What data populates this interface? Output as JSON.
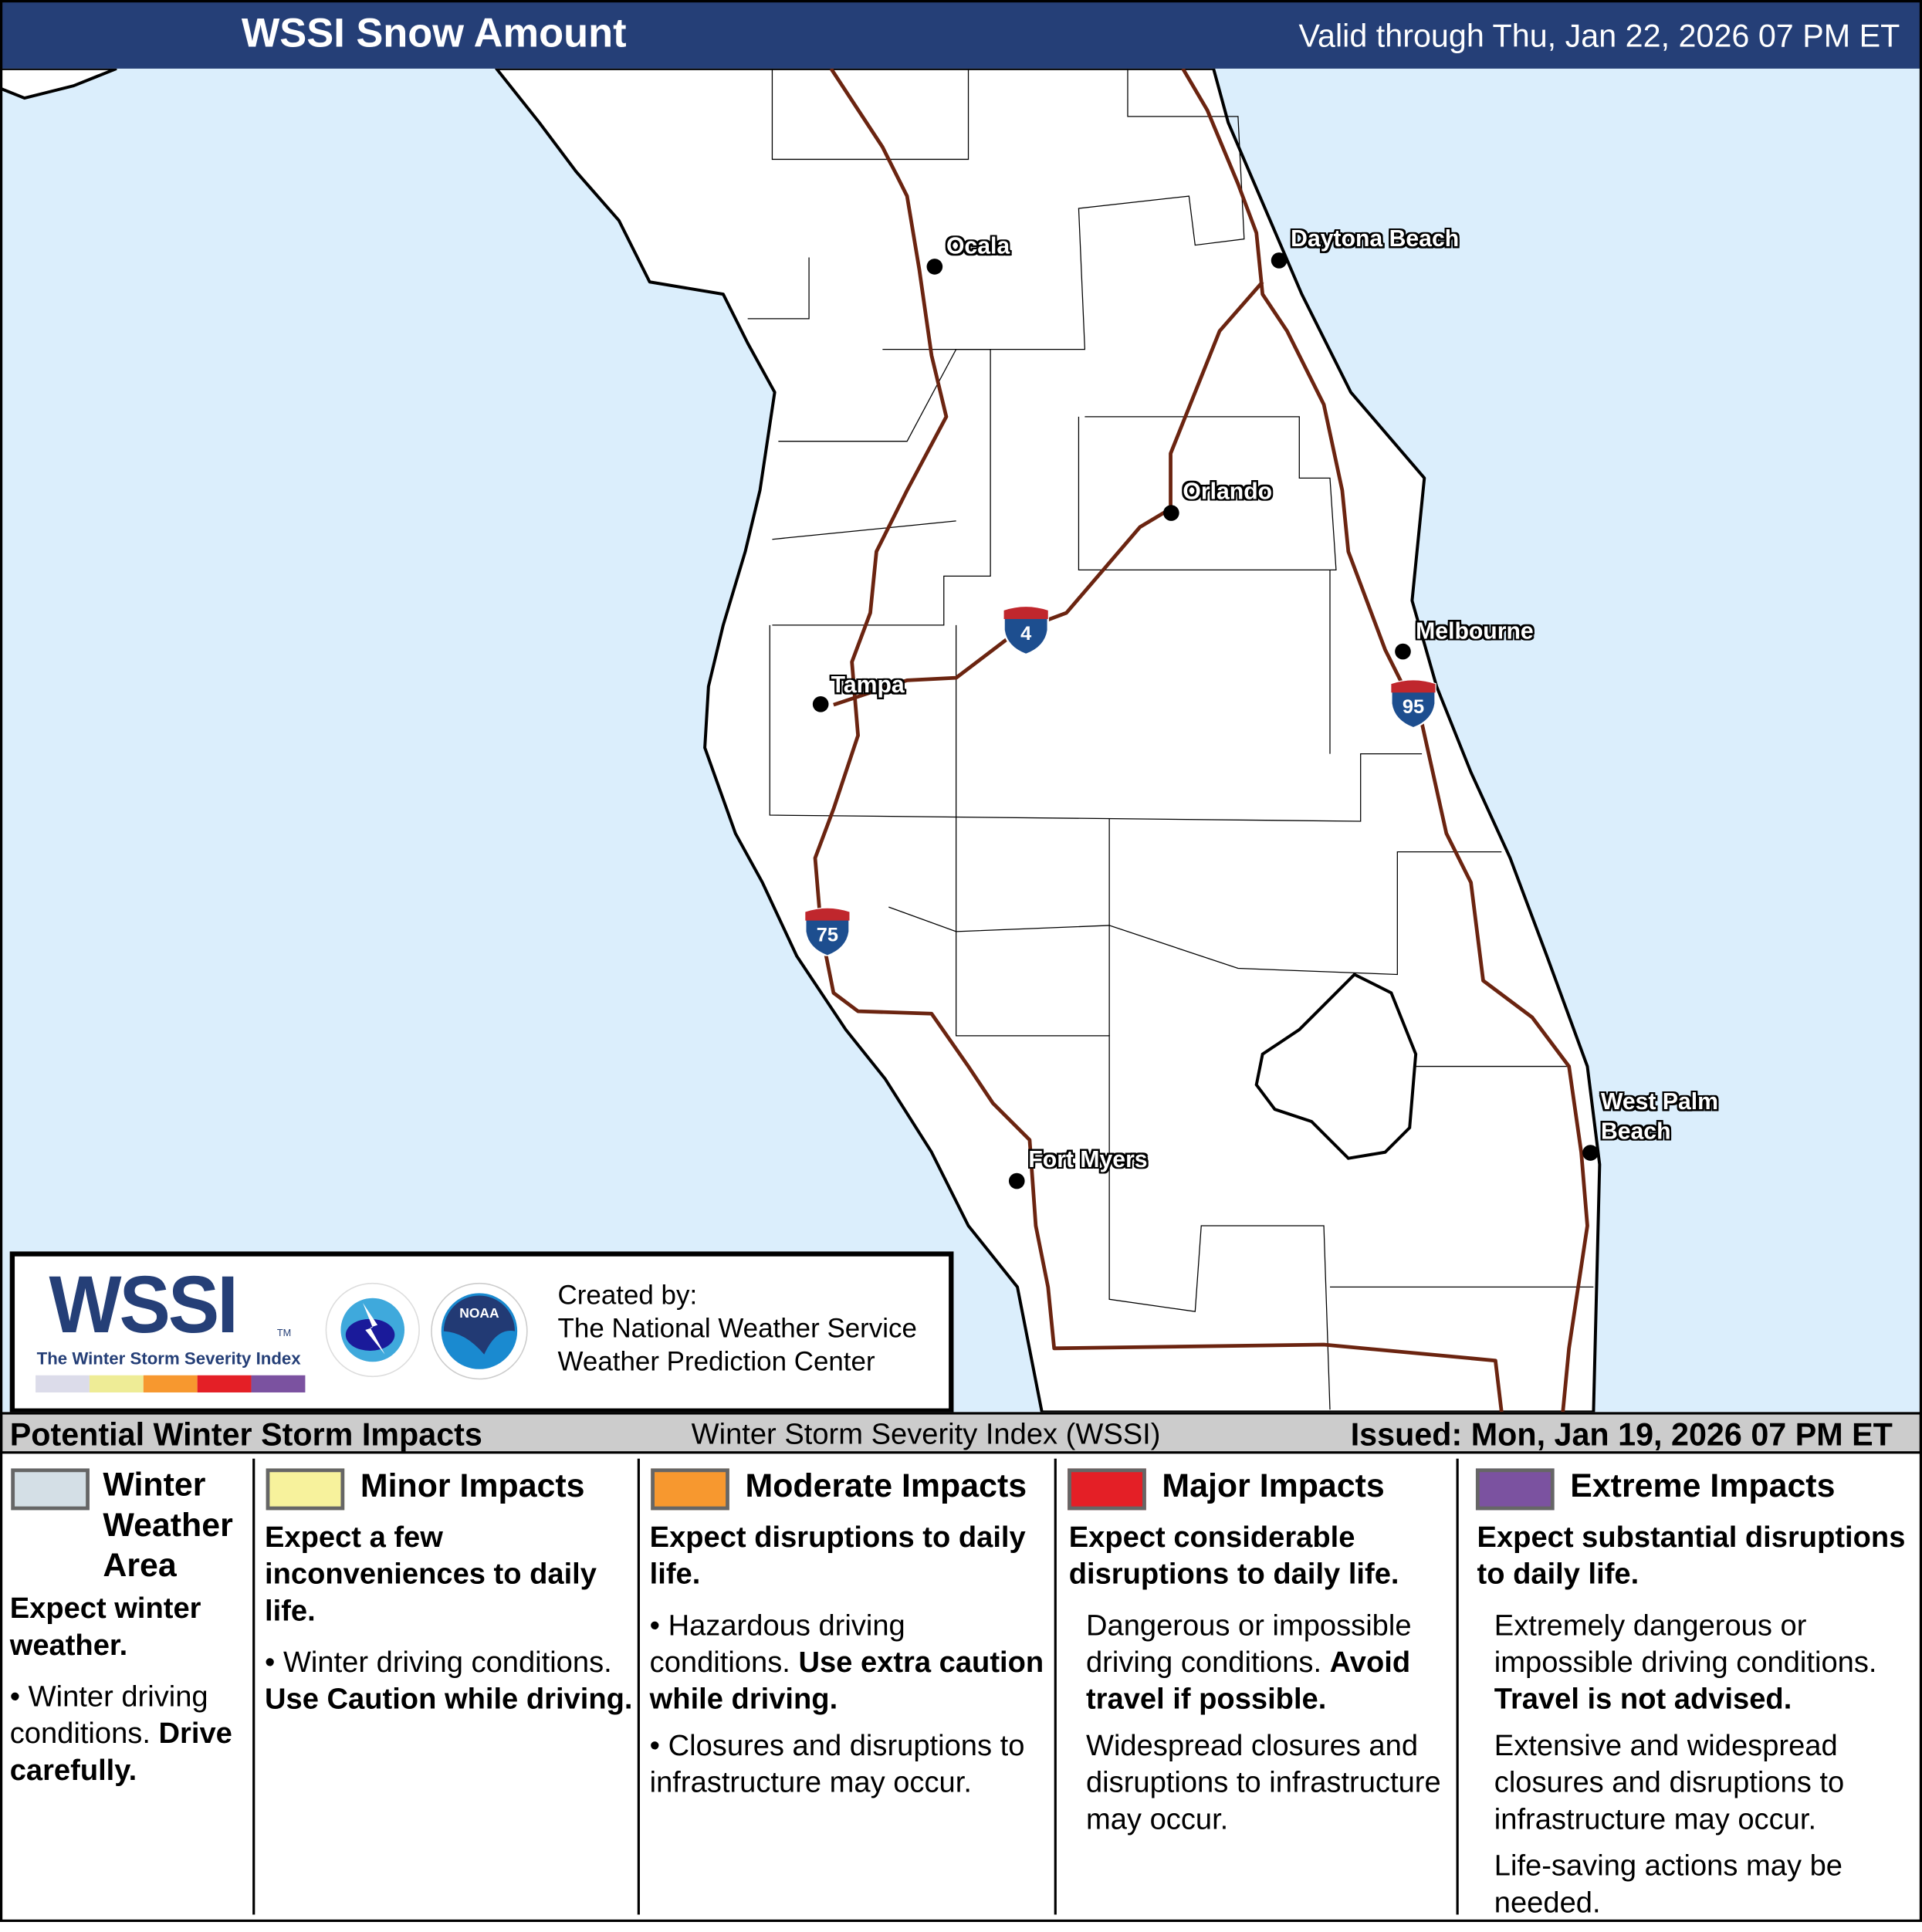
{
  "header": {
    "title": "WSSI Snow Amount",
    "valid": "Valid through Thu, Jan 22, 2026 07 PM ET"
  },
  "colors": {
    "header_bg": "#253f77",
    "water": "#dbeefc",
    "land": "#ffffff",
    "interstate": "#6b2410",
    "winter_weather": "#d4dfe6",
    "minor": "#f7f29c",
    "moderate": "#f7982f",
    "major": "#e41f26",
    "extreme": "#7b52a0"
  },
  "map": {
    "cities": [
      {
        "name": "Ocala"
      },
      {
        "name": "Daytona Beach"
      },
      {
        "name": "Orlando"
      },
      {
        "name": "Melbourne"
      },
      {
        "name": "Tampa"
      },
      {
        "name": "West Palm Beach"
      },
      {
        "name": "Fort Myers"
      }
    ],
    "interstates": [
      {
        "number": "4"
      },
      {
        "number": "95"
      },
      {
        "number": "75"
      }
    ]
  },
  "logo": {
    "wssi": "WSSI",
    "tm": "TM",
    "subtitle": "The Winter Storm Severity Index",
    "created_by": "Created by:",
    "org1": "The National Weather Service",
    "org2": "Weather Prediction Center",
    "nws_text": "NATIONAL WEATHER SERVICE",
    "noaa_text": "NOAA"
  },
  "impacts": {
    "title": "Potential Winter Storm Impacts",
    "index_name": "Winter Storm Severity Index (WSSI)",
    "issued": "Issued: Mon, Jan 19, 2026 07 PM ET",
    "categories": [
      {
        "title": "Winter Weather Area",
        "lead": "Expect winter weather.",
        "bullet1": "Winter driving conditions.",
        "bullet1_bold": "Drive carefully."
      },
      {
        "title": "Minor Impacts",
        "lead": "Expect a few inconveniences to daily life.",
        "bullet1": "Winter driving conditions.",
        "bullet1_bold": "Use Caution while driving."
      },
      {
        "title": "Moderate Impacts",
        "lead": "Expect disruptions to daily life.",
        "bullet1": "Hazardous driving conditions.",
        "bullet1_bold": "Use extra caution while driving.",
        "bullet2": "Closures and disruptions to infrastructure may occur."
      },
      {
        "title": "Major Impacts",
        "lead": "Expect considerable disruptions to daily life.",
        "bullet1": "Dangerous or impossible driving conditions.",
        "bullet1_bold": "Avoid travel if possible.",
        "bullet2": "Widespread closures and disruptions to infrastructure may occur."
      },
      {
        "title": "Extreme Impacts",
        "lead": "Expect substantial disruptions to daily life.",
        "bullet1": "Extremely dangerous or impossible driving conditions.",
        "bullet1_bold": "Travel is not advised.",
        "bullet2": "Extensive and widespread closures and disruptions to infrastructure may occur.",
        "bullet3": "Life-saving actions may be needed."
      }
    ]
  }
}
